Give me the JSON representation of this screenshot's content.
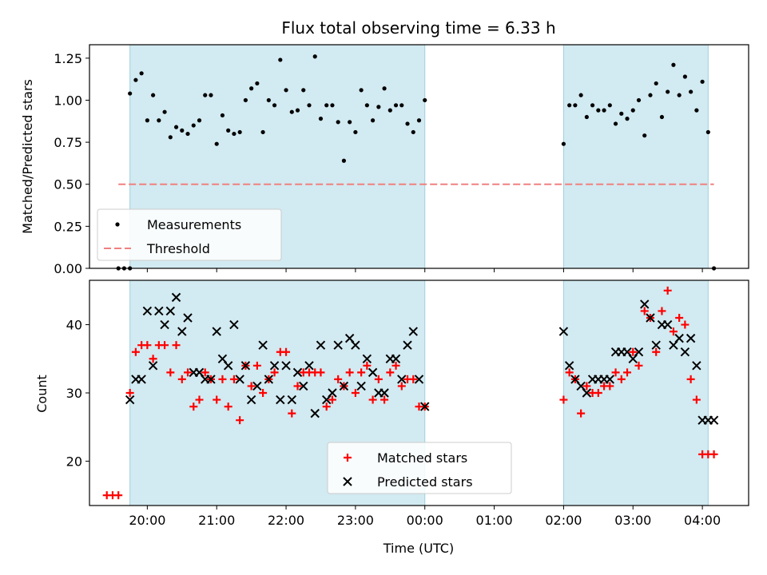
{
  "chart_data": [
    {
      "type": "scatter",
      "title": "Flux total observing time = 6.33 h",
      "ylabel": "Matched/Predicted stars",
      "xlabel": "",
      "ylim": [
        0,
        1.33
      ],
      "yticks": [
        "0.00",
        "0.25",
        "0.50",
        "0.75",
        "1.00",
        "1.25"
      ],
      "grid": false,
      "legend_position": "lower-left",
      "threshold": {
        "name": "Threshold",
        "value": 0.5,
        "x_start": "19:35",
        "x_end": "04:10",
        "color": "#f08080"
      },
      "shaded_regions": [
        {
          "start": "19:45",
          "end": "00:00",
          "color": "#add8e6"
        },
        {
          "start": "02:00",
          "end": "04:05",
          "color": "#add8e6"
        }
      ],
      "series": [
        {
          "name": "Measurements",
          "color": "#000000",
          "x": [
            "19:35",
            "19:40",
            "19:45",
            "19:45",
            "19:50",
            "19:55",
            "20:00",
            "20:05",
            "20:10",
            "20:15",
            "20:20",
            "20:25",
            "20:30",
            "20:35",
            "20:40",
            "20:45",
            "20:50",
            "20:55",
            "21:00",
            "21:05",
            "21:10",
            "21:15",
            "21:20",
            "21:25",
            "21:30",
            "21:35",
            "21:40",
            "21:45",
            "21:50",
            "21:55",
            "22:00",
            "22:05",
            "22:10",
            "22:15",
            "22:20",
            "22:25",
            "22:30",
            "22:35",
            "22:40",
            "22:45",
            "22:50",
            "22:55",
            "23:00",
            "23:05",
            "23:10",
            "23:15",
            "23:20",
            "23:25",
            "23:30",
            "23:35",
            "23:40",
            "23:45",
            "23:50",
            "23:55",
            "00:00",
            "02:00",
            "02:05",
            "02:10",
            "02:15",
            "02:20",
            "02:25",
            "02:30",
            "02:35",
            "02:40",
            "02:45",
            "02:50",
            "02:55",
            "03:00",
            "03:05",
            "03:10",
            "03:15",
            "03:20",
            "03:25",
            "03:30",
            "03:35",
            "03:40",
            "03:45",
            "03:50",
            "03:55",
            "04:00",
            "04:05",
            "04:10"
          ],
          "y": [
            0.0,
            0.0,
            0.0,
            1.04,
            1.12,
            1.16,
            0.88,
            1.03,
            0.88,
            0.93,
            0.78,
            0.84,
            0.82,
            0.8,
            0.85,
            0.88,
            1.03,
            1.03,
            0.74,
            0.91,
            0.82,
            0.8,
            0.81,
            1.0,
            1.07,
            1.1,
            0.81,
            1.0,
            0.97,
            1.24,
            1.06,
            0.93,
            0.94,
            1.06,
            0.97,
            1.26,
            0.89,
            0.97,
            0.97,
            0.87,
            0.64,
            0.87,
            0.81,
            1.06,
            0.97,
            0.88,
            0.96,
            1.07,
            0.94,
            0.97,
            0.97,
            0.86,
            0.81,
            0.88,
            1.0,
            0.74,
            0.97,
            0.97,
            1.03,
            0.9,
            0.97,
            0.94,
            0.94,
            0.97,
            0.86,
            0.92,
            0.89,
            0.94,
            1.0,
            0.79,
            1.03,
            1.1,
            0.9,
            1.05,
            1.21,
            1.03,
            1.14,
            1.05,
            0.94,
            1.11,
            0.81,
            0.0
          ]
        }
      ]
    },
    {
      "type": "scatter",
      "title": "",
      "ylabel": "Count",
      "xlabel": "Time (UTC)",
      "ylim": [
        13.5,
        46.5
      ],
      "yticks": [
        "20",
        "30",
        "40"
      ],
      "xticks": [
        "20:00",
        "21:00",
        "22:00",
        "23:00",
        "00:00",
        "01:00",
        "02:00",
        "03:00",
        "04:00"
      ],
      "grid": false,
      "legend_position": "lower-center",
      "shaded_regions": [
        {
          "start": "19:45",
          "end": "00:00",
          "color": "#add8e6"
        },
        {
          "start": "02:00",
          "end": "04:05",
          "color": "#add8e6"
        }
      ],
      "series": [
        {
          "name": "Matched stars",
          "marker": "plus",
          "color": "#ff0000",
          "x": [
            "19:25",
            "19:30",
            "19:35",
            "19:45",
            "19:50",
            "19:55",
            "20:00",
            "20:05",
            "20:10",
            "20:15",
            "20:20",
            "20:25",
            "20:30",
            "20:35",
            "20:40",
            "20:45",
            "20:50",
            "20:55",
            "21:00",
            "21:05",
            "21:10",
            "21:15",
            "21:20",
            "21:25",
            "21:30",
            "21:35",
            "21:40",
            "21:45",
            "21:50",
            "21:55",
            "22:00",
            "22:05",
            "22:10",
            "22:15",
            "22:20",
            "22:25",
            "22:30",
            "22:35",
            "22:40",
            "22:45",
            "22:50",
            "22:55",
            "23:00",
            "23:05",
            "23:10",
            "23:15",
            "23:20",
            "23:25",
            "23:30",
            "23:35",
            "23:40",
            "23:45",
            "23:50",
            "23:55",
            "00:00",
            "02:00",
            "02:05",
            "02:10",
            "02:15",
            "02:20",
            "02:25",
            "02:30",
            "02:35",
            "02:40",
            "02:45",
            "02:50",
            "02:55",
            "03:00",
            "03:05",
            "03:10",
            "03:15",
            "03:20",
            "03:25",
            "03:30",
            "03:35",
            "03:40",
            "03:45",
            "03:50",
            "03:55",
            "04:00",
            "04:05",
            "04:10"
          ],
          "y": [
            15,
            15,
            15,
            30,
            36,
            37,
            37,
            35,
            37,
            37,
            33,
            37,
            32,
            33,
            28,
            29,
            33,
            32,
            29,
            32,
            28,
            32,
            26,
            34,
            31,
            34,
            30,
            32,
            33,
            36,
            36,
            27,
            31,
            33,
            33,
            33,
            33,
            28,
            29,
            32,
            31,
            33,
            30,
            33,
            34,
            29,
            32,
            29,
            33,
            34,
            31,
            32,
            32,
            28,
            28,
            29,
            33,
            32,
            27,
            31,
            30,
            30,
            31,
            31,
            33,
            32,
            33,
            36,
            34,
            42,
            41,
            36,
            42,
            45,
            39,
            41,
            40,
            32,
            29,
            21,
            21,
            21
          ]
        },
        {
          "name": "Predicted stars",
          "marker": "cross",
          "color": "#000000",
          "x": [
            "19:45",
            "19:50",
            "19:55",
            "20:00",
            "20:05",
            "20:10",
            "20:15",
            "20:20",
            "20:25",
            "20:30",
            "20:35",
            "20:40",
            "20:45",
            "20:50",
            "20:55",
            "21:00",
            "21:05",
            "21:10",
            "21:15",
            "21:20",
            "21:25",
            "21:30",
            "21:35",
            "21:40",
            "21:45",
            "21:50",
            "21:55",
            "22:00",
            "22:05",
            "22:10",
            "22:15",
            "22:20",
            "22:25",
            "22:30",
            "22:35",
            "22:40",
            "22:45",
            "22:50",
            "22:55",
            "23:00",
            "23:05",
            "23:10",
            "23:15",
            "23:20",
            "23:25",
            "23:30",
            "23:35",
            "23:40",
            "23:45",
            "23:50",
            "23:55",
            "00:00",
            "02:00",
            "02:05",
            "02:10",
            "02:15",
            "02:20",
            "02:25",
            "02:30",
            "02:35",
            "02:40",
            "02:45",
            "02:50",
            "02:55",
            "03:00",
            "03:05",
            "03:10",
            "03:15",
            "03:20",
            "03:25",
            "03:30",
            "03:35",
            "03:40",
            "03:45",
            "03:50",
            "03:55",
            "04:00",
            "04:05",
            "04:10"
          ],
          "y": [
            29,
            32,
            32,
            42,
            34,
            42,
            40,
            42,
            44,
            39,
            41,
            33,
            33,
            32,
            32,
            39,
            35,
            34,
            40,
            32,
            34,
            29,
            31,
            37,
            32,
            34,
            29,
            34,
            29,
            33,
            31,
            34,
            27,
            37,
            29,
            30,
            37,
            31,
            38,
            37,
            31,
            35,
            33,
            30,
            30,
            35,
            35,
            32,
            37,
            39,
            32,
            28,
            39,
            34,
            32,
            31,
            30,
            32,
            32,
            32,
            32,
            36,
            36,
            36,
            35,
            36,
            43,
            41,
            37,
            40,
            40,
            37,
            38,
            36,
            38,
            34,
            26,
            26,
            26
          ]
        }
      ]
    }
  ]
}
